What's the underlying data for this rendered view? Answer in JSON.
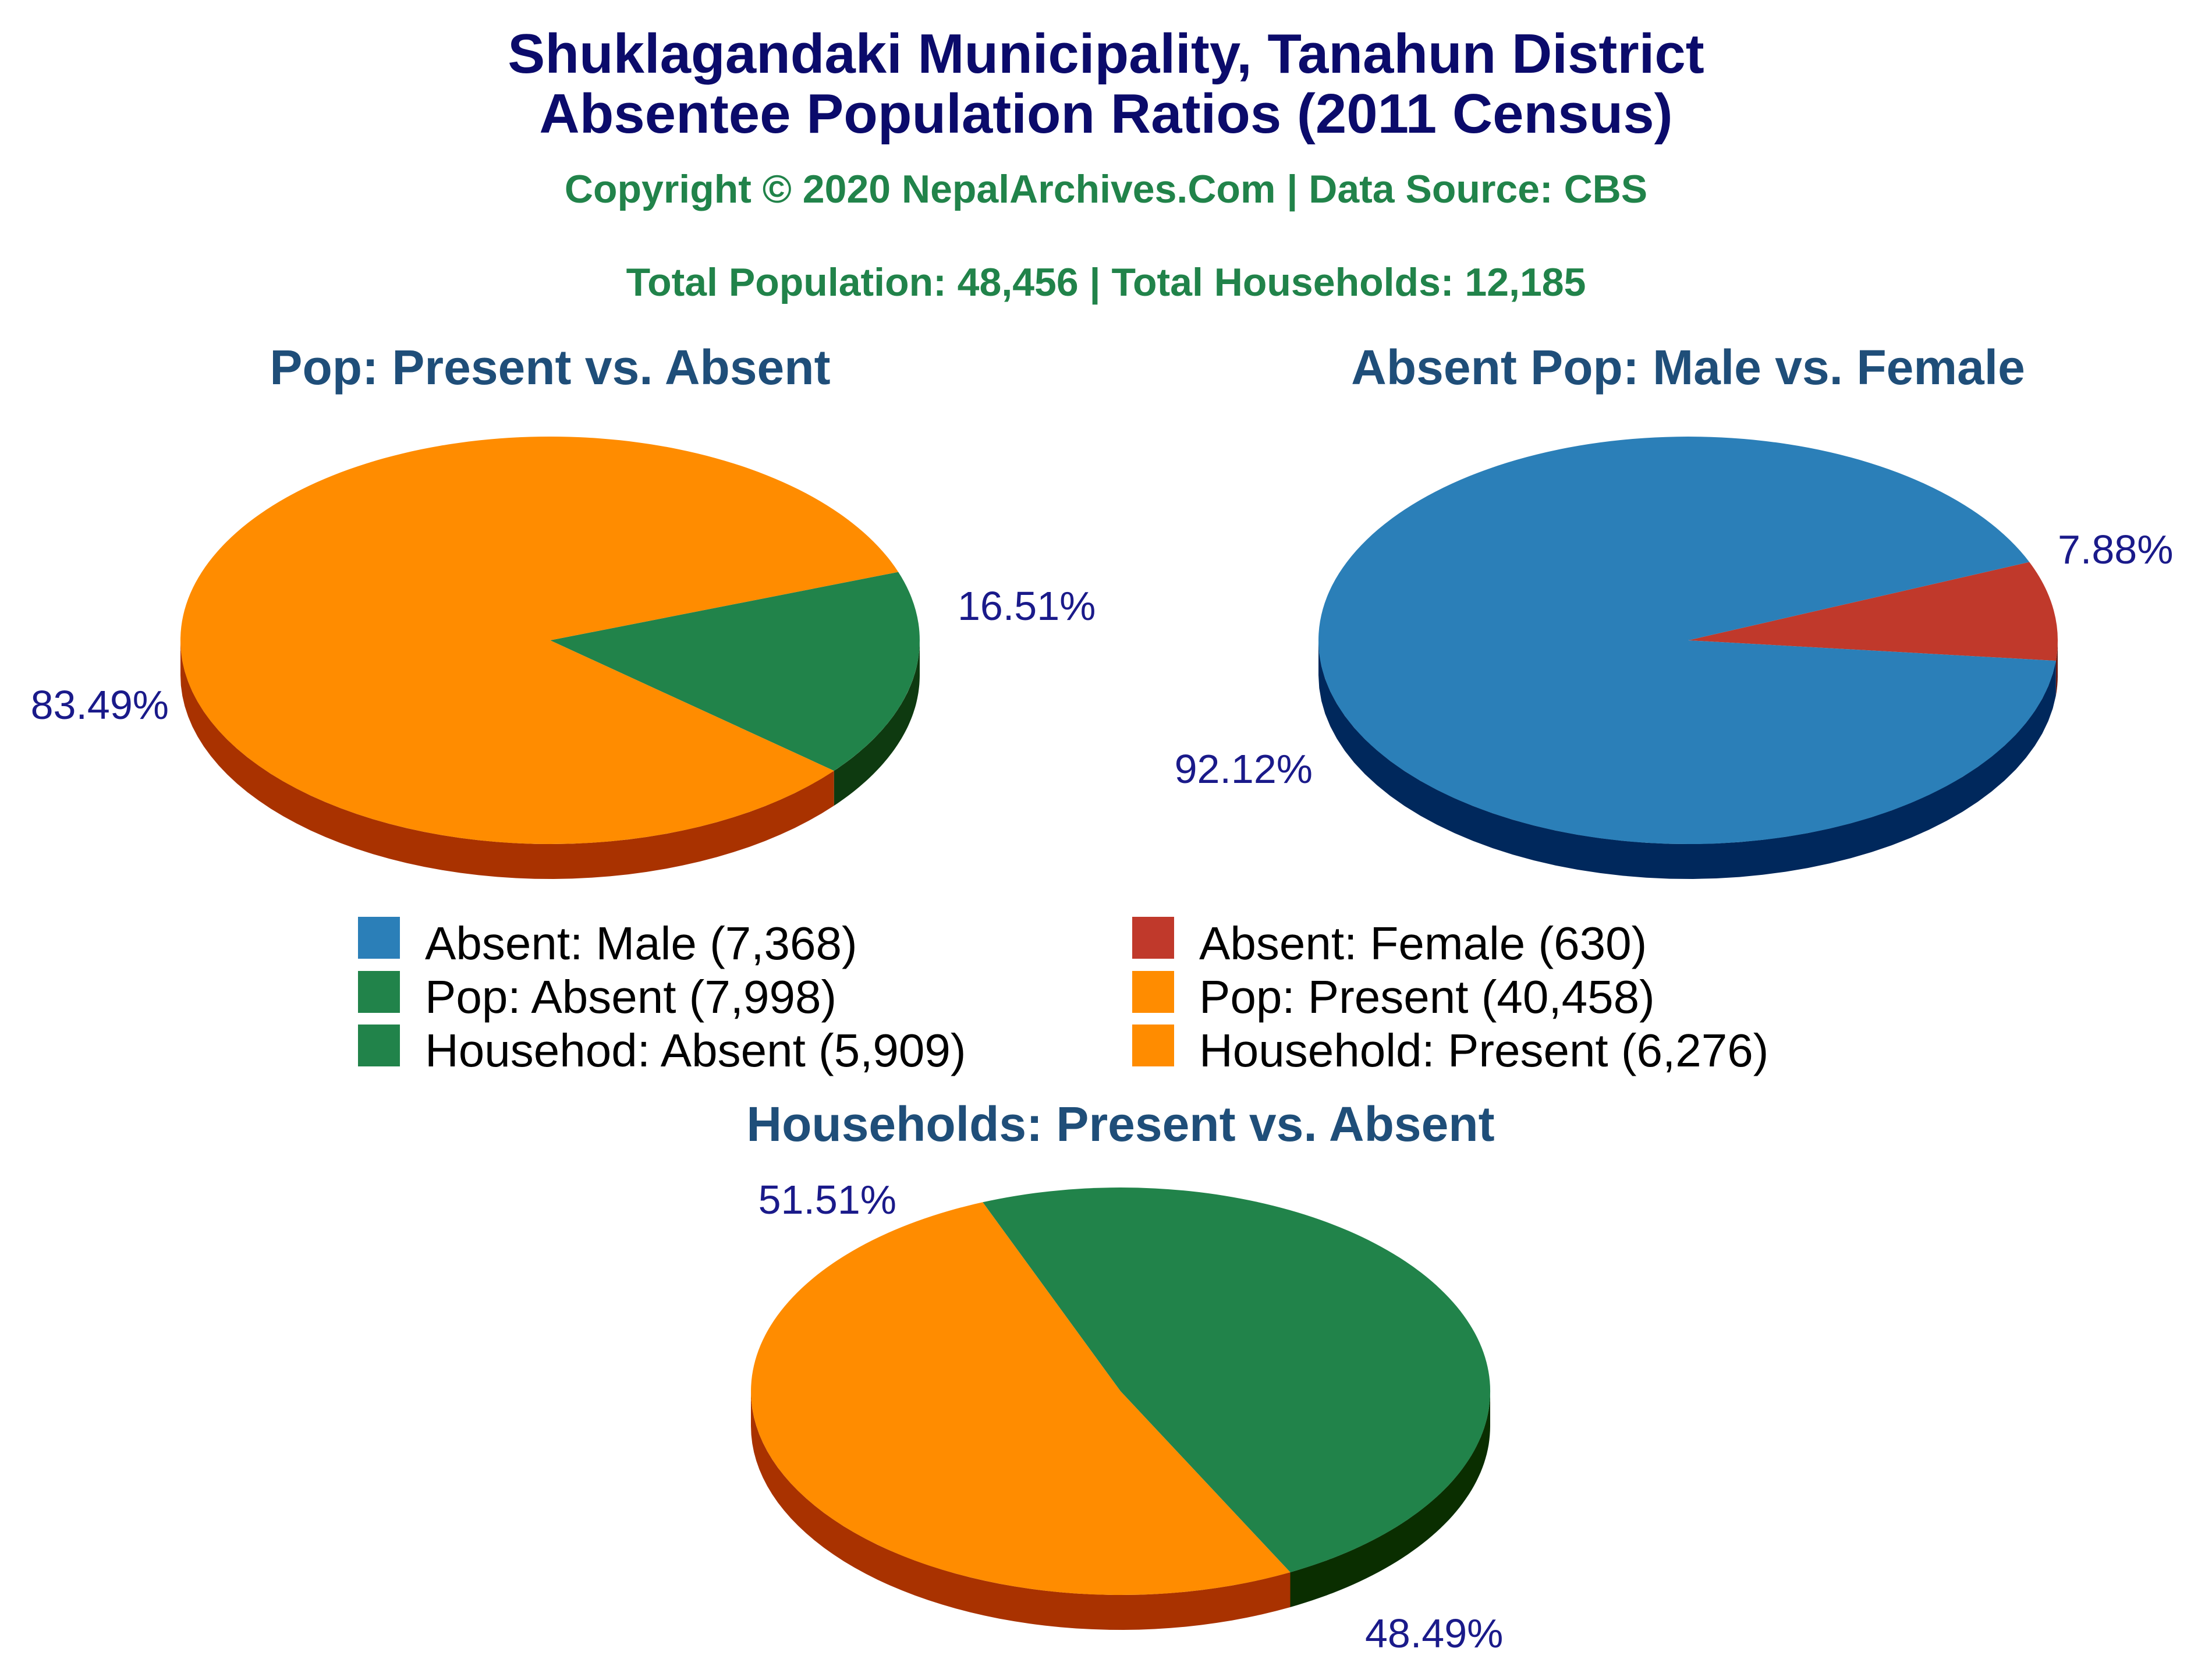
{
  "header": {
    "title_line1": "Shuklagandaki Municipality, Tanahun District",
    "title_line2": "Absentee Population Ratios (2011 Census)",
    "copyright": "Copyright © 2020 NepalArchives.Com | Data Source: CBS",
    "totals": "Total Population: 48,456 | Total Households: 12,185"
  },
  "legend": [
    {
      "label": "Absent: Male (7,368)",
      "color": "#2b7fb8"
    },
    {
      "label": "Absent: Female (630)",
      "color": "#c0392b"
    },
    {
      "label": "Pop: Absent (7,998)",
      "color": "#21834a"
    },
    {
      "label": "Pop: Present (40,458)",
      "color": "#ff8c00"
    },
    {
      "label": "Househod: Absent (5,909)",
      "color": "#21834a"
    },
    {
      "label": "Household: Present (6,276)",
      "color": "#ff8c00"
    }
  ],
  "chart_data": [
    {
      "type": "pie",
      "title": "Pop: Present vs. Absent",
      "slices": [
        {
          "name": "Pop: Absent",
          "value": 7998,
          "label": "16.51%",
          "color": "#21834a",
          "side_color": "#0e3a10"
        },
        {
          "name": "Pop: Present",
          "value": 40458,
          "label": "83.49%",
          "color": "#ff8c00",
          "side_color": "#a93200"
        }
      ]
    },
    {
      "type": "pie",
      "title": "Absent Pop: Male vs. Female",
      "slices": [
        {
          "name": "Absent: Female",
          "value": 630,
          "label": "7.88%",
          "color": "#c0392b",
          "side_color": "#6b1a12"
        },
        {
          "name": "Absent: Male",
          "value": 7368,
          "label": "92.12%",
          "color": "#2b7fb8",
          "side_color": "#00285c"
        }
      ]
    },
    {
      "type": "pie",
      "title": "Households: Present vs. Absent",
      "slices": [
        {
          "name": "Household: Absent",
          "value": 5909,
          "label": "48.49%",
          "color": "#21834a",
          "side_color": "#0a2e00"
        },
        {
          "name": "Household: Present",
          "value": 6276,
          "label": "51.51%",
          "color": "#ff8c00",
          "side_color": "#a93200"
        }
      ]
    }
  ]
}
